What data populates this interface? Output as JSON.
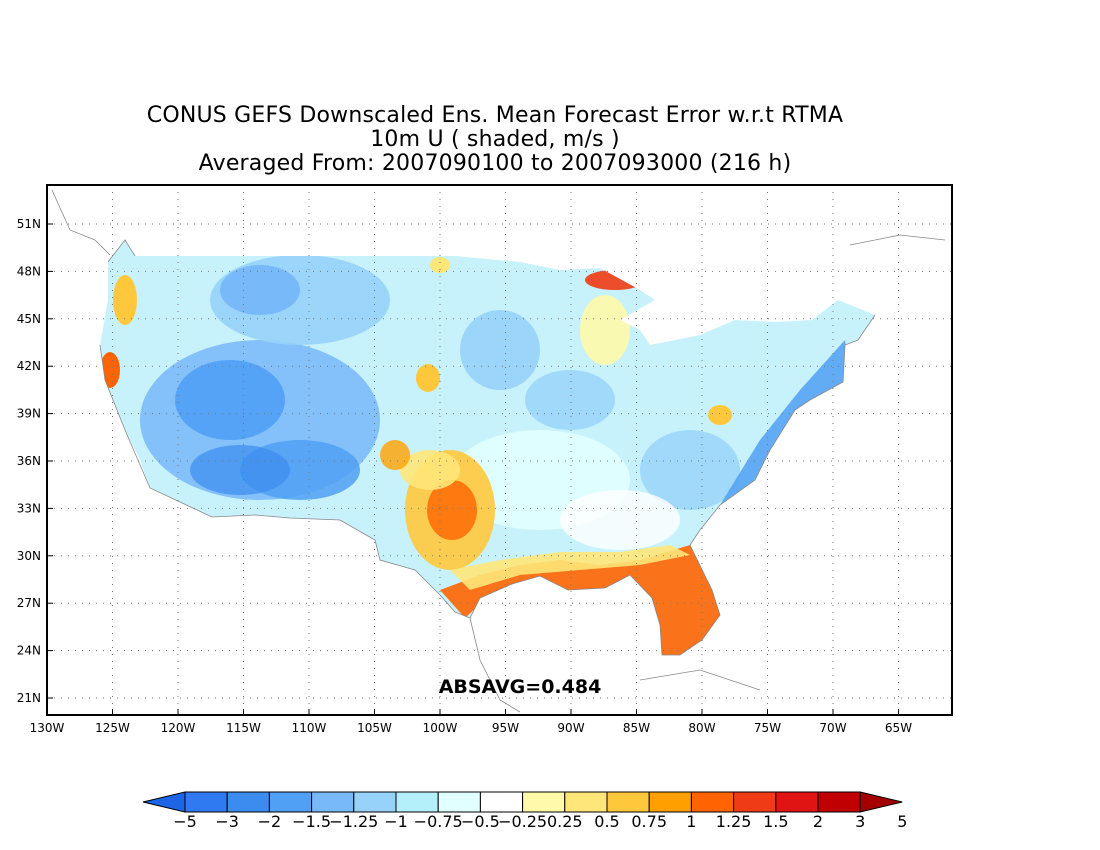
{
  "header": {
    "title_line1": "CONUS GEFS Downscaled Ens. Mean Forecast Error w.r.t RTMA",
    "title_line2": "10m U ( shaded, m/s )",
    "title_line3": "Averaged From: 2007090100 to 2007093000 (216 h)"
  },
  "map": {
    "lon_ticks": [
      "130W",
      "125W",
      "120W",
      "115W",
      "110W",
      "105W",
      "100W",
      "95W",
      "90W",
      "85W",
      "80W",
      "75W",
      "70W",
      "65W"
    ],
    "lat_ticks": [
      "21N",
      "24N",
      "27N",
      "30N",
      "33N",
      "36N",
      "39N",
      "42N",
      "45N",
      "48N",
      "51N"
    ],
    "stat_label": "ABSAVG=0.484"
  },
  "colorbar": {
    "labels": [
      "-5",
      "-3",
      "-2",
      "-1.5",
      "-1.25",
      "-1",
      "-0.75",
      "-0.5",
      "-0.25",
      "0.25",
      "0.5",
      "0.75",
      "1",
      "1.25",
      "1.5",
      "2",
      "3",
      "5"
    ],
    "colors": [
      "#1e64e6",
      "#2f7af0",
      "#3c8cf0",
      "#50a0f5",
      "#78b9fa",
      "#96d2fa",
      "#b4f0fa",
      "#e1ffff",
      "#ffffff",
      "#fffaaa",
      "#ffe678",
      "#ffc83c",
      "#ffa000",
      "#ff6400",
      "#f03c14",
      "#e11414",
      "#c00000",
      "#a50000"
    ]
  },
  "chart_data": {
    "type": "heatmap",
    "title": "CONUS GEFS Downscaled Ens. Mean Forecast Error w.r.t RTMA",
    "variable": "10m U",
    "units": "m/s",
    "period": "2007090100 to 2007093000 (216 h)",
    "lon_range": [
      -130,
      -62
    ],
    "lat_range": [
      19.5,
      52.5
    ],
    "contour_levels": [
      -5,
      -3,
      -2,
      -1.5,
      -1.25,
      -1,
      -0.75,
      -0.5,
      -0.25,
      0.25,
      0.5,
      0.75,
      1,
      1.25,
      1.5,
      2,
      3,
      5
    ],
    "absavg": 0.484,
    "grid": true
  }
}
